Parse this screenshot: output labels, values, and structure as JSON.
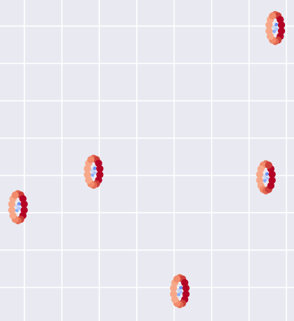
{
  "chart_data": {
    "type": "scatter",
    "grid": true,
    "colors": {
      "background": "#e9eaf1",
      "grid": "#ffffff",
      "ring_palette": [
        "#f7a889",
        "#f18b6c",
        "#e26952",
        "#cc3f39",
        "#b40426"
      ],
      "center_palette": [
        "#8db0fe",
        "#aec9fc",
        "#c9d7f0",
        "#6f92f3"
      ]
    },
    "xlim": [
      0,
      7.85
    ],
    "ylim": [
      0,
      8.6
    ],
    "xticks": [
      0.65,
      1.65,
      2.65,
      3.65,
      4.65,
      5.65,
      6.65,
      7.65
    ],
    "yticks": [
      0.9,
      1.9,
      2.9,
      3.9,
      4.9,
      5.9,
      6.9,
      7.9
    ],
    "clusters": [
      {
        "center": [
          7.35,
          7.85
        ],
        "orientation": "mirrored"
      },
      {
        "center": [
          2.5,
          4.0
        ],
        "orientation": "mirrored"
      },
      {
        "center": [
          0.48,
          3.05
        ],
        "orientation": "mirrored"
      },
      {
        "center": [
          7.1,
          3.85
        ],
        "orientation": "normal"
      },
      {
        "center": [
          4.8,
          0.8
        ],
        "orientation": "mirrored"
      }
    ],
    "ring_points": 14,
    "ring_radius": [
      0.17,
      0.36
    ],
    "center_points": 4
  }
}
